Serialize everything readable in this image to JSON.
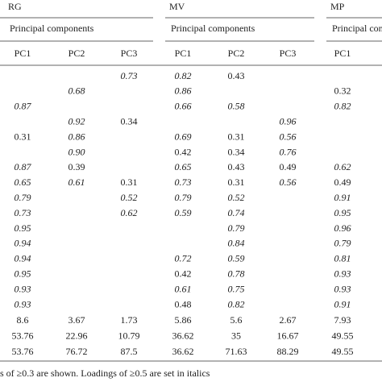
{
  "groups": [
    {
      "name": "RG",
      "subtitle": "Principal components",
      "columns": [
        "PC1",
        "PC2",
        "PC3"
      ]
    },
    {
      "name": "MV",
      "subtitle": "Principal components",
      "columns": [
        "PC1",
        "PC2",
        "PC3"
      ]
    },
    {
      "name": "MP",
      "subtitle": "Principal components",
      "columns": [
        "PC1"
      ]
    }
  ],
  "loadings": [
    [
      null,
      null,
      "0.73",
      "0.82",
      "0.43",
      null,
      null
    ],
    [
      null,
      "0.68",
      null,
      "0.86",
      null,
      null,
      "0.32"
    ],
    [
      "0.87",
      null,
      null,
      "0.66",
      "0.58",
      null,
      "0.82"
    ],
    [
      null,
      "0.92",
      "0.34",
      null,
      null,
      "0.96",
      null
    ],
    [
      "0.31",
      "0.86",
      null,
      "0.69",
      "0.31",
      "0.56",
      null
    ],
    [
      null,
      "0.90",
      null,
      "0.42",
      "0.34",
      "0.76",
      null
    ],
    [
      "0.87",
      "0.39",
      null,
      "0.65",
      "0.43",
      "0.49",
      "0.62"
    ],
    [
      "0.65",
      "0.61",
      "0.31",
      "0.73",
      "0.31",
      "0.56",
      "0.49"
    ],
    [
      "0.79",
      null,
      "0.52",
      "0.79",
      "0.52",
      null,
      "0.91"
    ],
    [
      "0.73",
      null,
      "0.62",
      "0.59",
      "0.74",
      null,
      "0.95"
    ],
    [
      "0.95",
      null,
      null,
      null,
      "0.79",
      null,
      "0.96"
    ],
    [
      "0.94",
      null,
      null,
      null,
      "0.84",
      null,
      "0.79"
    ],
    [
      "0.94",
      null,
      null,
      "0.72",
      "0.59",
      null,
      "0.81"
    ],
    [
      "0.95",
      null,
      null,
      "0.42",
      "0.78",
      null,
      "0.93"
    ],
    [
      "0.93",
      null,
      null,
      "0.61",
      "0.75",
      null,
      "0.93"
    ],
    [
      "0.93",
      null,
      null,
      "0.48",
      "0.82",
      null,
      "0.91"
    ]
  ],
  "summary": [
    [
      "8.6",
      "3.67",
      "1.73",
      "5.86",
      "5.6",
      "2.67",
      "7.93"
    ],
    [
      "53.76",
      "22.96",
      "10.79",
      "36.62",
      "35",
      "16.67",
      "49.55"
    ],
    [
      "53.76",
      "76.72",
      "87.5",
      "36.62",
      "71.63",
      "88.29",
      "49.55"
    ]
  ],
  "footnote": "s of ≥0.3 are shown. Loadings of ≥0.5 are set in italics"
}
